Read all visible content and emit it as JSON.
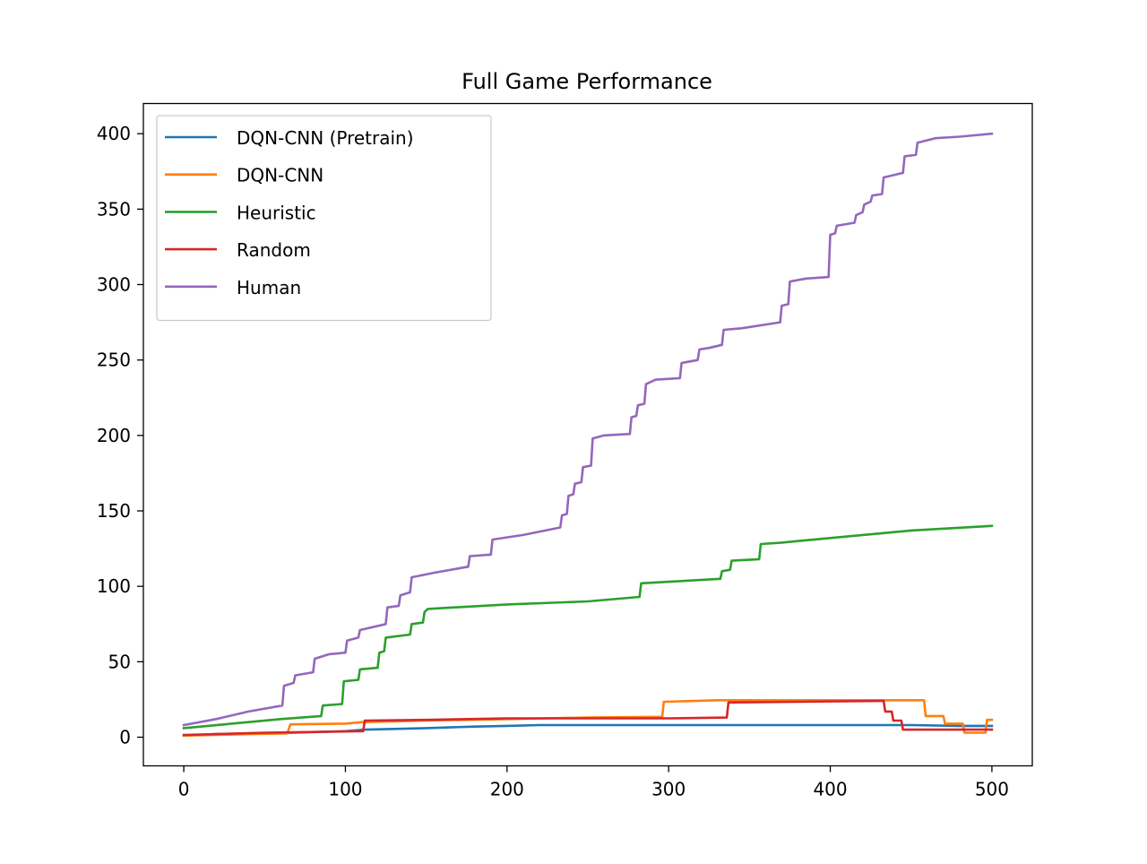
{
  "chart_data": {
    "type": "line",
    "title": "Full Game Performance",
    "xlabel": "",
    "ylabel": "",
    "xlim": [
      -25,
      525
    ],
    "ylim": [
      -19,
      420
    ],
    "x_ticks": [
      0,
      100,
      200,
      300,
      400,
      500
    ],
    "y_ticks": [
      0,
      50,
      100,
      150,
      200,
      250,
      300,
      350,
      400
    ],
    "grid": false,
    "legend_position": "top-left",
    "series": [
      {
        "name": "DQN-CNN (Pretrain)",
        "color": "#1f77b4",
        "points": [
          [
            0,
            1
          ],
          [
            20,
            2
          ],
          [
            50,
            2.5
          ],
          [
            100,
            4
          ],
          [
            112,
            5
          ],
          [
            130,
            5.5
          ],
          [
            150,
            6
          ],
          [
            180,
            7
          ],
          [
            200,
            7.5
          ],
          [
            220,
            8
          ],
          [
            300,
            8
          ],
          [
            400,
            8
          ],
          [
            450,
            8
          ],
          [
            480,
            7.5
          ],
          [
            500,
            7.5
          ]
        ]
      },
      {
        "name": "DQN-CNN",
        "color": "#ff7f0e",
        "points": [
          [
            0,
            1
          ],
          [
            20,
            1.5
          ],
          [
            40,
            2
          ],
          [
            64,
            2.5
          ],
          [
            66,
            8.5
          ],
          [
            100,
            9
          ],
          [
            110,
            10
          ],
          [
            150,
            11
          ],
          [
            200,
            12
          ],
          [
            250,
            13
          ],
          [
            296,
            13.5
          ],
          [
            297,
            23.5
          ],
          [
            330,
            24.5
          ],
          [
            440,
            24.5
          ],
          [
            458,
            24.5
          ],
          [
            459,
            14
          ],
          [
            470,
            14
          ],
          [
            471,
            9
          ],
          [
            480,
            9
          ],
          [
            482,
            9
          ],
          [
            483,
            3
          ],
          [
            496,
            3
          ],
          [
            497,
            11.5
          ],
          [
            500,
            11.5
          ]
        ]
      },
      {
        "name": "Heuristic",
        "color": "#2ca02c",
        "points": [
          [
            0,
            6
          ],
          [
            40,
            10
          ],
          [
            60,
            12
          ],
          [
            85,
            14
          ],
          [
            86,
            21
          ],
          [
            98,
            22
          ],
          [
            99,
            37
          ],
          [
            108,
            38
          ],
          [
            109,
            45
          ],
          [
            120,
            46
          ],
          [
            121,
            56
          ],
          [
            124,
            57
          ],
          [
            125,
            66
          ],
          [
            140,
            68
          ],
          [
            141,
            75
          ],
          [
            148,
            76
          ],
          [
            149,
            83
          ],
          [
            151,
            85
          ],
          [
            200,
            88
          ],
          [
            250,
            90
          ],
          [
            282,
            93
          ],
          [
            283,
            102
          ],
          [
            300,
            103
          ],
          [
            332,
            105
          ],
          [
            333,
            110
          ],
          [
            338,
            111
          ],
          [
            339,
            117
          ],
          [
            356,
            118
          ],
          [
            357,
            128
          ],
          [
            370,
            129
          ],
          [
            400,
            132
          ],
          [
            450,
            137
          ],
          [
            500,
            140
          ]
        ]
      },
      {
        "name": "Random",
        "color": "#d62728",
        "points": [
          [
            0,
            1.5
          ],
          [
            50,
            3
          ],
          [
            111,
            4
          ],
          [
            112,
            11
          ],
          [
            150,
            11.5
          ],
          [
            200,
            12.5
          ],
          [
            300,
            12.5
          ],
          [
            336,
            13
          ],
          [
            337,
            23
          ],
          [
            380,
            23.5
          ],
          [
            430,
            24
          ],
          [
            433,
            24
          ],
          [
            434,
            17
          ],
          [
            438,
            17
          ],
          [
            439,
            11
          ],
          [
            444,
            11
          ],
          [
            445,
            5
          ],
          [
            500,
            5
          ]
        ]
      },
      {
        "name": "Human",
        "color": "#9467bd",
        "points": [
          [
            0,
            8
          ],
          [
            20,
            12
          ],
          [
            40,
            17
          ],
          [
            61,
            21
          ],
          [
            62,
            34
          ],
          [
            68,
            36
          ],
          [
            69,
            41
          ],
          [
            80,
            43
          ],
          [
            81,
            52
          ],
          [
            90,
            55
          ],
          [
            100,
            56
          ],
          [
            101,
            64
          ],
          [
            108,
            66
          ],
          [
            109,
            71
          ],
          [
            125,
            75
          ],
          [
            126,
            86
          ],
          [
            133,
            87
          ],
          [
            134,
            94
          ],
          [
            140,
            96
          ],
          [
            141,
            106
          ],
          [
            155,
            109
          ],
          [
            176,
            113
          ],
          [
            177,
            120
          ],
          [
            190,
            121
          ],
          [
            191,
            131
          ],
          [
            210,
            134
          ],
          [
            233,
            139
          ],
          [
            234,
            147
          ],
          [
            237,
            148
          ],
          [
            238,
            160
          ],
          [
            241,
            161
          ],
          [
            242,
            168
          ],
          [
            246,
            169
          ],
          [
            247,
            179
          ],
          [
            252,
            180
          ],
          [
            253,
            198
          ],
          [
            260,
            200
          ],
          [
            276,
            201
          ],
          [
            277,
            212
          ],
          [
            280,
            213
          ],
          [
            281,
            220
          ],
          [
            285,
            221
          ],
          [
            286,
            234
          ],
          [
            292,
            237
          ],
          [
            307,
            238
          ],
          [
            308,
            248
          ],
          [
            318,
            250
          ],
          [
            319,
            257
          ],
          [
            325,
            258
          ],
          [
            333,
            260
          ],
          [
            334,
            270
          ],
          [
            345,
            271
          ],
          [
            369,
            275
          ],
          [
            370,
            286
          ],
          [
            374,
            287
          ],
          [
            375,
            302
          ],
          [
            385,
            304
          ],
          [
            399,
            305
          ],
          [
            400,
            333
          ],
          [
            403,
            334
          ],
          [
            404,
            339
          ],
          [
            415,
            341
          ],
          [
            416,
            346
          ],
          [
            420,
            348
          ],
          [
            421,
            353
          ],
          [
            425,
            355
          ],
          [
            426,
            359
          ],
          [
            432,
            360
          ],
          [
            433,
            371
          ],
          [
            445,
            374
          ],
          [
            446,
            385
          ],
          [
            453,
            386
          ],
          [
            454,
            394
          ],
          [
            465,
            397
          ],
          [
            480,
            398
          ],
          [
            500,
            400
          ]
        ]
      }
    ]
  }
}
